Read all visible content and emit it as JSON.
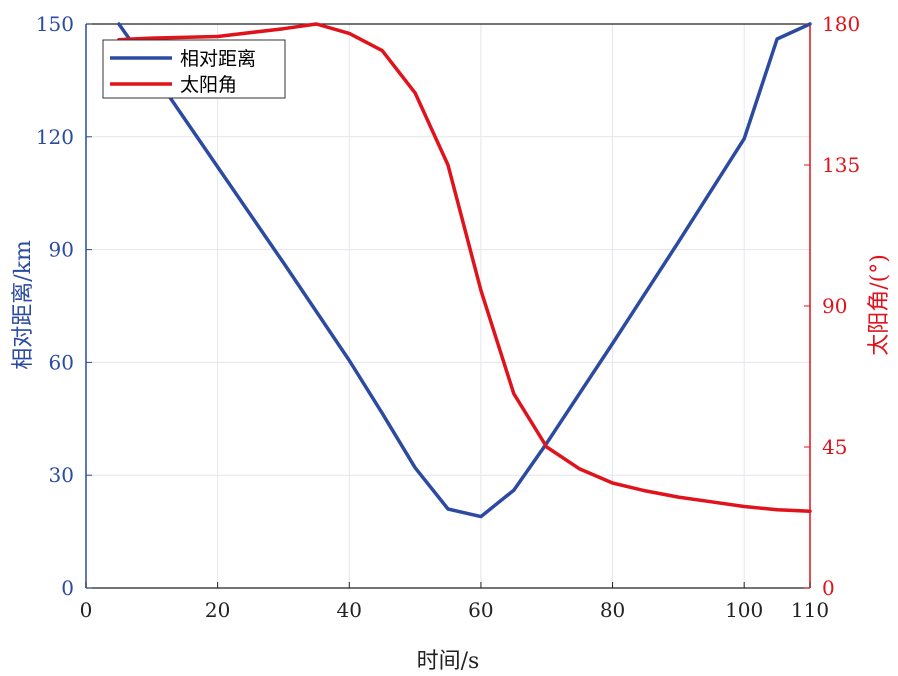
{
  "chart_data": {
    "type": "line",
    "xlabel": "时间/s",
    "ylabel_left": "相对距离/km",
    "ylabel_right": "太阳角/(°)",
    "xlim": [
      0,
      110
    ],
    "ylim_left": [
      0,
      150
    ],
    "ylim_right": [
      0,
      180
    ],
    "x_ticks": [
      0,
      20,
      40,
      60,
      80,
      100,
      110
    ],
    "y_left_ticks": [
      0,
      30,
      60,
      90,
      120,
      150
    ],
    "y_right_ticks": [
      0,
      45,
      90,
      135,
      180
    ],
    "grid": true,
    "legend_position": "top-left",
    "series": [
      {
        "name": "相对距离",
        "axis": "left",
        "color": "#2b4aa0",
        "x": [
          5,
          10,
          20,
          30,
          40,
          45,
          50,
          55,
          60,
          65,
          70,
          80,
          90,
          100,
          105,
          110
        ],
        "y": [
          150,
          137.5,
          112,
          86.5,
          60.5,
          46.5,
          32,
          21,
          19,
          26,
          38.5,
          65,
          92,
          119.5,
          146,
          150
        ]
      },
      {
        "name": "太阳角",
        "axis": "right",
        "color": "#e0121b",
        "x": [
          5,
          10,
          20,
          30,
          35,
          40,
          45,
          50,
          55,
          60,
          65,
          70,
          75,
          80,
          85,
          90,
          95,
          100,
          105,
          110
        ],
        "y": [
          175,
          175.5,
          176,
          178.5,
          180,
          177,
          171.5,
          158,
          135,
          95,
          62,
          45,
          38,
          33.5,
          31,
          29,
          27.5,
          26,
          25,
          24.5
        ]
      }
    ]
  }
}
